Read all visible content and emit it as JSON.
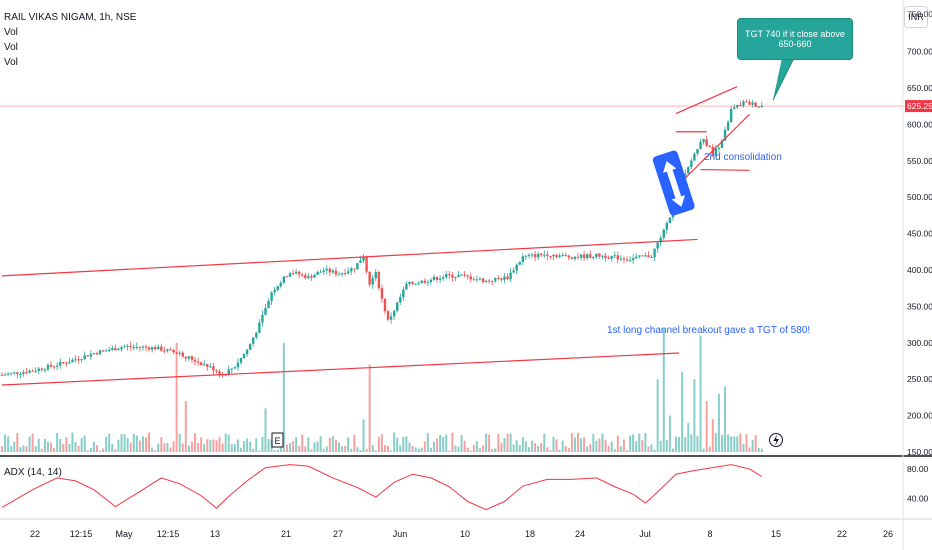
{
  "header": {
    "symbol_line": "RAIL VIKAS NIGAM, 1h, NSE",
    "indicators": [
      "Vol",
      "Vol",
      "Vol"
    ],
    "currency": "INR"
  },
  "colors": {
    "up": "#26a69a",
    "down": "#ef5350",
    "trendline": "#f23645",
    "adx": "#f23645",
    "annotation_text": "#2962ff",
    "label_bg": "#f23645"
  },
  "annotations": {
    "callout": "TGT 740 if it close above 650-660",
    "consolidation": "2nd consolidation",
    "channel_note": "1st long channel breakout gave a TGT of 580!"
  },
  "bottom_pane": {
    "label": "ADX (14, 14)"
  },
  "chart_data": {
    "type": "candlestick",
    "title": "RAIL VIKAS NIGAM, 1h, NSE",
    "price_axis": {
      "ticks": [
        150,
        200,
        250,
        300,
        350,
        400,
        450,
        500,
        550,
        600,
        650,
        700
      ],
      "top_partial": "750.00",
      "last_price": 625.25,
      "range": [
        150,
        760
      ]
    },
    "time_axis": {
      "ticks": [
        "22",
        "12:15",
        "May",
        "12:15",
        "13",
        "21",
        "27",
        "Jun",
        "10",
        "18",
        "24",
        "Jul",
        "8",
        "15",
        "22",
        "26"
      ]
    },
    "price_path": [
      [
        0,
        256
      ],
      [
        10,
        262
      ],
      [
        20,
        272
      ],
      [
        30,
        286
      ],
      [
        40,
        295
      ],
      [
        50,
        293
      ],
      [
        58,
        285
      ],
      [
        65,
        272
      ],
      [
        70,
        262
      ],
      [
        72,
        256
      ],
      [
        76,
        268
      ],
      [
        80,
        290
      ],
      [
        84,
        325
      ],
      [
        88,
        370
      ],
      [
        94,
        398
      ],
      [
        100,
        390
      ],
      [
        105,
        400
      ],
      [
        110,
        395
      ],
      [
        115,
        403
      ],
      [
        118,
        420
      ],
      [
        120,
        380
      ],
      [
        122,
        395
      ],
      [
        124,
        360
      ],
      [
        126,
        330
      ],
      [
        128,
        345
      ],
      [
        132,
        380
      ],
      [
        138,
        385
      ],
      [
        145,
        392
      ],
      [
        150,
        392
      ],
      [
        158,
        385
      ],
      [
        165,
        390
      ],
      [
        170,
        418
      ],
      [
        178,
        422
      ],
      [
        185,
        418
      ],
      [
        195,
        420
      ],
      [
        205,
        415
      ],
      [
        212,
        420
      ],
      [
        215,
        445
      ],
      [
        218,
        470
      ],
      [
        220,
        520
      ],
      [
        223,
        530
      ],
      [
        226,
        560
      ],
      [
        229,
        580
      ],
      [
        232,
        560
      ],
      [
        235,
        575
      ],
      [
        238,
        620
      ],
      [
        242,
        630
      ],
      [
        245,
        628
      ],
      [
        248,
        625
      ]
    ],
    "volume_spikes": [
      [
        57,
        300
      ],
      [
        60,
        220
      ],
      [
        86,
        210
      ],
      [
        92,
        300
      ],
      [
        118,
        195
      ],
      [
        120,
        270
      ],
      [
        214,
        250
      ],
      [
        216,
        320
      ],
      [
        218,
        200
      ],
      [
        222,
        260
      ],
      [
        224,
        190
      ],
      [
        226,
        250
      ],
      [
        228,
        310
      ],
      [
        230,
        220
      ],
      [
        232,
        195
      ],
      [
        234,
        230
      ],
      [
        236,
        240
      ]
    ],
    "trendlines": [
      {
        "from": [
          0,
          392
        ],
        "to": [
          227,
          442
        ]
      },
      {
        "from": [
          0,
          242
        ],
        "to": [
          221,
          286
        ]
      },
      {
        "from": [
          220,
          615
        ],
        "to": [
          240,
          652
        ]
      },
      {
        "from": [
          222,
          522
        ],
        "to": [
          244,
          614
        ]
      },
      {
        "from": [
          220,
          590
        ],
        "to": [
          230,
          590
        ]
      },
      {
        "from": [
          228,
          538
        ],
        "to": [
          244,
          537
        ]
      }
    ],
    "adx": {
      "axis_ticks": [
        80,
        40
      ],
      "range": [
        15,
        95
      ],
      "values": [
        [
          0,
          28
        ],
        [
          10,
          52
        ],
        [
          18,
          68
        ],
        [
          24,
          64
        ],
        [
          30,
          52
        ],
        [
          37,
          29
        ],
        [
          44,
          47
        ],
        [
          52,
          68
        ],
        [
          58,
          60
        ],
        [
          65,
          44
        ],
        [
          70,
          27
        ],
        [
          74,
          43
        ],
        [
          80,
          64
        ],
        [
          86,
          82
        ],
        [
          94,
          86
        ],
        [
          100,
          84
        ],
        [
          108,
          68
        ],
        [
          116,
          55
        ],
        [
          122,
          42
        ],
        [
          128,
          62
        ],
        [
          134,
          73
        ],
        [
          140,
          68
        ],
        [
          146,
          56
        ],
        [
          152,
          36
        ],
        [
          158,
          25
        ],
        [
          164,
          36
        ],
        [
          170,
          57
        ],
        [
          178,
          66
        ],
        [
          186,
          66
        ],
        [
          194,
          68
        ],
        [
          200,
          56
        ],
        [
          206,
          46
        ],
        [
          210,
          34
        ],
        [
          213,
          45
        ],
        [
          220,
          73
        ],
        [
          226,
          78
        ],
        [
          232,
          82
        ],
        [
          238,
          86
        ],
        [
          244,
          80
        ],
        [
          248,
          70
        ]
      ]
    }
  }
}
